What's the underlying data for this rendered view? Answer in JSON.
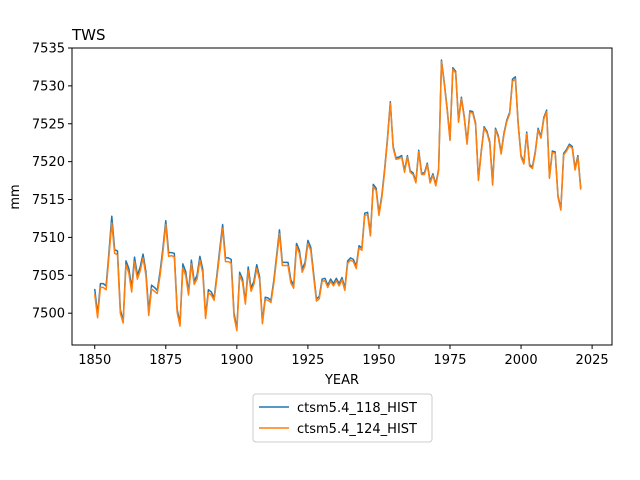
{
  "chart_data": {
    "type": "line",
    "title": "TWS",
    "xlabel": "YEAR",
    "ylabel": "mm",
    "xlim": [
      1842,
      2032
    ],
    "ylim": [
      7495.8,
      7535
    ],
    "xticks": [
      1850,
      1875,
      1900,
      1925,
      1950,
      1975,
      2000,
      2025
    ],
    "yticks": [
      7500,
      7505,
      7510,
      7515,
      7520,
      7525,
      7530,
      7535
    ],
    "grid": false,
    "legend_position": "below-center",
    "x_start": 1850,
    "x_step": 1,
    "series": [
      {
        "name": "ctsm5.4_118_HIST",
        "color": "#1f77b4",
        "values": [
          7503.2,
          7499.8,
          7503.9,
          7503.9,
          7503.6,
          7508.0,
          7512.8,
          7508.4,
          7508.2,
          7500.5,
          7498.9,
          7506.9,
          7505.9,
          7503.3,
          7507.4,
          7505.0,
          7506.1,
          7507.8,
          7505.5,
          7500.3,
          7503.7,
          7503.4,
          7503.0,
          7505.5,
          7508.6,
          7512.2,
          7508.0,
          7508.0,
          7507.9,
          7500.5,
          7498.6,
          7506.5,
          7505.5,
          7502.8,
          7507.0,
          7504.2,
          7505.0,
          7507.5,
          7505.8,
          7499.6,
          7503.1,
          7502.8,
          7502.0,
          7505.1,
          7508.5,
          7511.7,
          7507.3,
          7507.3,
          7507.1,
          7500.0,
          7498.0,
          7505.4,
          7504.5,
          7501.5,
          7506.1,
          7503.3,
          7504.2,
          7506.4,
          7504.8,
          7498.9,
          7502.1,
          7502.0,
          7501.7,
          7504.3,
          7507.6,
          7511.0,
          7506.7,
          7506.7,
          7506.7,
          7504.4,
          7503.7,
          7509.2,
          7508.3,
          7505.8,
          7506.7,
          7509.6,
          7508.7,
          7505.3,
          7501.9,
          7502.2,
          7504.5,
          7504.6,
          7503.7,
          7504.5,
          7503.9,
          7504.6,
          7503.9,
          7504.7,
          7503.3,
          7506.9,
          7507.3,
          7507.1,
          7506.2,
          7508.9,
          7508.6,
          7513.2,
          7513.3,
          7510.5,
          7517.0,
          7516.5,
          7513.2,
          7515.5,
          7519.0,
          7523.1,
          7527.9,
          7522.0,
          7520.5,
          7520.6,
          7520.8,
          7518.8,
          7520.8,
          7518.8,
          7518.5,
          7517.4,
          7521.5,
          7518.5,
          7518.5,
          7519.8,
          7517.4,
          7518.4,
          7517.0,
          7519.0,
          7533.4,
          7530.4,
          7527.0,
          7523.0,
          7532.4,
          7531.9,
          7525.4,
          7528.5,
          7526.0,
          7522.5,
          7526.7,
          7526.6,
          7525.1,
          7517.7,
          7521.4,
          7524.6,
          7524.0,
          7522.6,
          7517.1,
          7524.4,
          7523.4,
          7521.2,
          7523.8,
          7525.5,
          7526.5,
          7530.9,
          7531.2,
          7525.0,
          7520.8,
          7519.9,
          7523.9,
          7519.6,
          7519.3,
          7521.3,
          7524.4,
          7523.3,
          7525.8,
          7526.8,
          7518.0,
          7521.4,
          7521.3,
          7515.5,
          7513.8,
          7521.1,
          7521.6,
          7522.3,
          7522.0,
          7519.1,
          7520.8,
          7516.5
        ]
      },
      {
        "name": "ctsm5.4_124_HIST",
        "color": "#ff7f0e",
        "values": [
          7502.5,
          7499.4,
          7503.4,
          7503.4,
          7503.1,
          7507.5,
          7511.9,
          7507.9,
          7507.7,
          7500.0,
          7498.7,
          7506.4,
          7505.3,
          7502.8,
          7506.8,
          7504.5,
          7505.6,
          7507.3,
          7505.0,
          7499.7,
          7503.2,
          7502.9,
          7502.6,
          7505.0,
          7508.1,
          7511.7,
          7507.5,
          7507.6,
          7507.4,
          7500.1,
          7498.3,
          7506.0,
          7505.0,
          7502.4,
          7506.5,
          7503.8,
          7504.5,
          7507.0,
          7505.3,
          7499.3,
          7502.7,
          7502.4,
          7501.7,
          7504.7,
          7508.0,
          7511.2,
          7506.8,
          7506.8,
          7506.6,
          7499.6,
          7497.7,
          7505.0,
          7504.1,
          7501.2,
          7505.6,
          7502.9,
          7503.8,
          7505.9,
          7504.4,
          7498.6,
          7501.8,
          7501.7,
          7501.4,
          7503.9,
          7507.2,
          7510.5,
          7506.3,
          7506.3,
          7506.3,
          7504.0,
          7503.3,
          7508.8,
          7507.9,
          7505.4,
          7506.3,
          7509.2,
          7508.3,
          7504.9,
          7501.6,
          7501.9,
          7504.2,
          7504.3,
          7503.4,
          7504.2,
          7503.6,
          7504.3,
          7503.6,
          7504.4,
          7503.0,
          7506.6,
          7507.0,
          7506.8,
          7505.9,
          7508.6,
          7508.3,
          7512.9,
          7513.0,
          7510.2,
          7516.7,
          7516.2,
          7512.9,
          7515.2,
          7518.7,
          7522.8,
          7527.7,
          7521.8,
          7520.3,
          7520.4,
          7520.6,
          7518.6,
          7520.6,
          7518.6,
          7518.3,
          7517.2,
          7521.3,
          7518.3,
          7518.3,
          7519.6,
          7517.2,
          7518.2,
          7516.8,
          7518.8,
          7533.2,
          7530.2,
          7526.8,
          7522.8,
          7532.2,
          7531.7,
          7525.2,
          7528.3,
          7525.8,
          7522.3,
          7526.5,
          7526.4,
          7524.9,
          7517.5,
          7521.2,
          7524.4,
          7523.8,
          7522.4,
          7516.9,
          7524.2,
          7523.2,
          7521.0,
          7523.6,
          7525.3,
          7526.3,
          7530.6,
          7530.9,
          7524.8,
          7520.6,
          7519.7,
          7523.7,
          7519.4,
          7519.1,
          7521.1,
          7524.2,
          7523.1,
          7525.6,
          7526.6,
          7517.8,
          7521.2,
          7521.1,
          7515.3,
          7513.6,
          7520.9,
          7521.4,
          7522.1,
          7521.8,
          7518.9,
          7520.6,
          7516.3
        ]
      }
    ]
  }
}
